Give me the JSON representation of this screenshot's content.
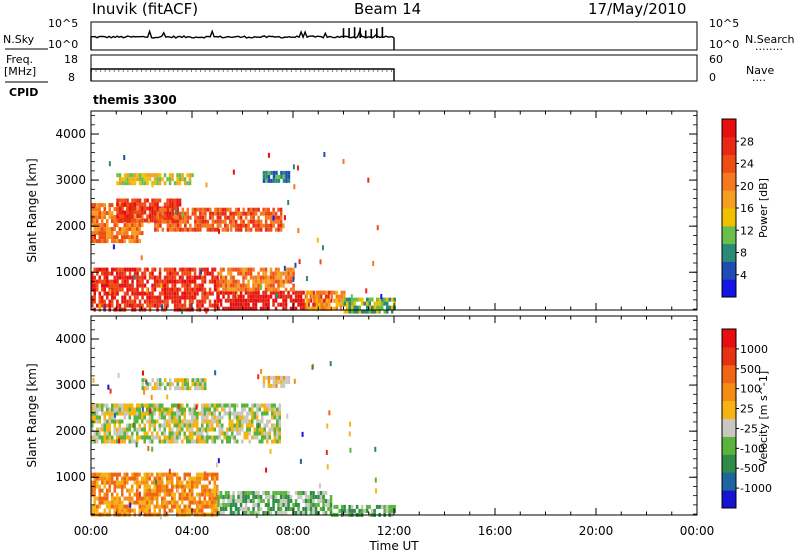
{
  "header": {
    "station": "Inuvik (fitACF)",
    "beam": "Beam 14",
    "date": "17/May/2010"
  },
  "params": {
    "nsky_label": "N.Sky",
    "nsearch_label": "N.Search",
    "nsearch_dots": "........",
    "freq_label": "Freq.",
    "freq_unit": "[MHz]",
    "nave_label": "Nave",
    "nave_dots": "....",
    "cpid_label": "CPID",
    "cpid_value": "themis 3300",
    "noise_ticks_left": [
      "10^5",
      "10^0"
    ],
    "noise_ticks_right": [
      "10^5",
      "10^0"
    ],
    "freq_ticks_left": [
      "18",
      "8"
    ],
    "freq_ticks_right": [
      "60",
      "0"
    ]
  },
  "chart_data": [
    {
      "type": "heatmap",
      "panel": "power",
      "ylabel": "Slant Range [km]",
      "xlabel": "Time UT",
      "x_ticks": [
        "00:00",
        "04:00",
        "08:00",
        "12:00",
        "16:00",
        "20:00",
        "00:00"
      ],
      "x_range_hours": [
        0,
        24
      ],
      "y_ticks": [
        1000,
        2000,
        3000,
        4000
      ],
      "y_range_km": [
        180,
        4500
      ],
      "data_end_hour": 12,
      "colorbar": {
        "label": "Power [dB]",
        "ticks": [
          "28",
          "24",
          "20",
          "16",
          "12",
          "8",
          "4"
        ],
        "colors": [
          "#1414e6",
          "#1e4cb4",
          "#2a8a7a",
          "#6abf4b",
          "#f0c000",
          "#f59f20",
          "#f57a1f",
          "#f04d14",
          "#e82a14",
          "#e60e0e"
        ]
      },
      "echo_regions": [
        {
          "t": [
            0.0,
            1.0
          ],
          "r": [
            180,
            1100
          ],
          "level": 8
        },
        {
          "t": [
            1.0,
            5.0
          ],
          "r": [
            180,
            1100
          ],
          "level": 8
        },
        {
          "t": [
            5.0,
            9.5
          ],
          "r": [
            180,
            600
          ],
          "level": 9
        },
        {
          "t": [
            5.0,
            8.0
          ],
          "r": [
            600,
            1100
          ],
          "level": 6
        },
        {
          "t": [
            8.5,
            10.0
          ],
          "r": [
            250,
            600
          ],
          "level": 5
        },
        {
          "t": [
            10.0,
            12.0
          ],
          "r": [
            180,
            450
          ],
          "level": 3
        },
        {
          "t": [
            0.0,
            2.0
          ],
          "r": [
            1700,
            2500
          ],
          "level": 6
        },
        {
          "t": [
            1.0,
            3.5
          ],
          "r": [
            2100,
            2600
          ],
          "level": 8
        },
        {
          "t": [
            2.5,
            5.5
          ],
          "r": [
            1900,
            2400
          ],
          "level": 7
        },
        {
          "t": [
            5.5,
            7.5
          ],
          "r": [
            1900,
            2400
          ],
          "level": 7
        },
        {
          "t": [
            1.0,
            4.0
          ],
          "r": [
            2900,
            3150
          ],
          "level": 4
        },
        {
          "t": [
            6.8,
            7.8
          ],
          "r": [
            3000,
            3200
          ],
          "level": 2
        }
      ]
    },
    {
      "type": "heatmap",
      "panel": "velocity",
      "ylabel": "Slant Range [km]",
      "xlabel": "Time UT",
      "x_ticks": [
        "00:00",
        "04:00",
        "08:00",
        "12:00",
        "16:00",
        "20:00",
        "00:00"
      ],
      "x_range_hours": [
        0,
        24
      ],
      "y_ticks": [
        1000,
        2000,
        3000,
        4000
      ],
      "y_range_km": [
        180,
        4500
      ],
      "data_end_hour": 12,
      "colorbar": {
        "label": "Velocity [m s^-1]",
        "ticks": [
          "1000",
          "500",
          "100",
          "25",
          "-25",
          "-100",
          "-500",
          "-1000"
        ],
        "colors": [
          "#1414d2",
          "#1e64a0",
          "#2d8c46",
          "#5ab43c",
          "#c8c8c0",
          "#f5b414",
          "#f58c14",
          "#f06414",
          "#e63214",
          "#e60e0e"
        ]
      },
      "echo_regions": [
        {
          "t": [
            0.0,
            5.0
          ],
          "r": [
            180,
            1100
          ],
          "level": 6
        },
        {
          "t": [
            5.0,
            9.5
          ],
          "r": [
            180,
            700
          ],
          "level": 3
        },
        {
          "t": [
            9.5,
            12.0
          ],
          "r": [
            180,
            400
          ],
          "level": 3
        },
        {
          "t": [
            0.0,
            7.5
          ],
          "r": [
            1800,
            2600
          ],
          "level": 4
        },
        {
          "t": [
            2.0,
            4.5
          ],
          "r": [
            2900,
            3150
          ],
          "level": 4
        },
        {
          "t": [
            6.8,
            7.8
          ],
          "r": [
            3000,
            3200
          ],
          "level": 5
        }
      ]
    }
  ]
}
